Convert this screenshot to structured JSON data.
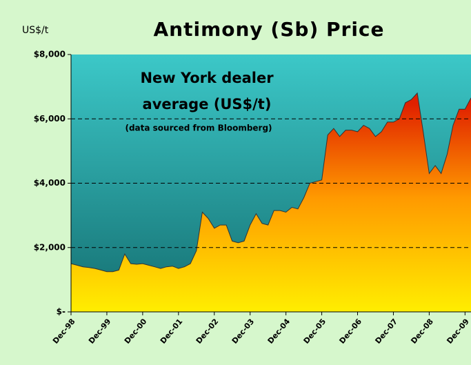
{
  "chart_data": {
    "type": "area",
    "title": "Antimony (Sb) Price",
    "y_label": "US$/t",
    "annotations": [
      "New York dealer",
      "average (US$/t)",
      "(data sourced from Bloomberg)"
    ],
    "categories": [
      "Dec-98",
      null,
      null,
      null,
      null,
      null,
      "Dec-99",
      null,
      null,
      null,
      null,
      null,
      "Dec-00",
      null,
      null,
      null,
      null,
      null,
      "Dec-01",
      null,
      null,
      null,
      null,
      null,
      "Dec-02",
      null,
      null,
      null,
      null,
      null,
      "Dec-03",
      null,
      null,
      null,
      null,
      null,
      "Dec-04",
      null,
      null,
      null,
      null,
      null,
      "Dec-05",
      null,
      null,
      null,
      null,
      null,
      "Dec-06",
      null,
      null,
      null,
      null,
      null,
      "Dec-07",
      null,
      null,
      null,
      null,
      null,
      "Dec-08",
      null,
      null,
      null,
      null,
      null,
      "Dec-09",
      null
    ],
    "values": [
      1500,
      1450,
      1400,
      1380,
      1350,
      1300,
      1250,
      1250,
      1300,
      1800,
      1500,
      1480,
      1500,
      1450,
      1400,
      1350,
      1400,
      1420,
      1350,
      1400,
      1500,
      1900,
      3100,
      2900,
      2600,
      2700,
      2700,
      2200,
      2150,
      2200,
      2700,
      3050,
      2750,
      2700,
      3150,
      3150,
      3100,
      3250,
      3200,
      3550,
      4000,
      4050,
      4100,
      5500,
      5700,
      5450,
      5650,
      5650,
      5600,
      5800,
      5700,
      5450,
      5600,
      5900,
      5900,
      6000,
      6500,
      6600,
      6800,
      5600,
      4300,
      4550,
      4300,
      4900,
      5800,
      6300,
      6300,
      6650
    ],
    "ylim": [
      0,
      8000
    ],
    "yticks": [
      {
        "value": 0,
        "label": "$-"
      },
      {
        "value": 2000,
        "label": "$2,000"
      },
      {
        "value": 4000,
        "label": "$4,000"
      },
      {
        "value": 6000,
        "label": "$6,000"
      },
      {
        "value": 8000,
        "label": "$8,000"
      }
    ],
    "grid": true
  }
}
